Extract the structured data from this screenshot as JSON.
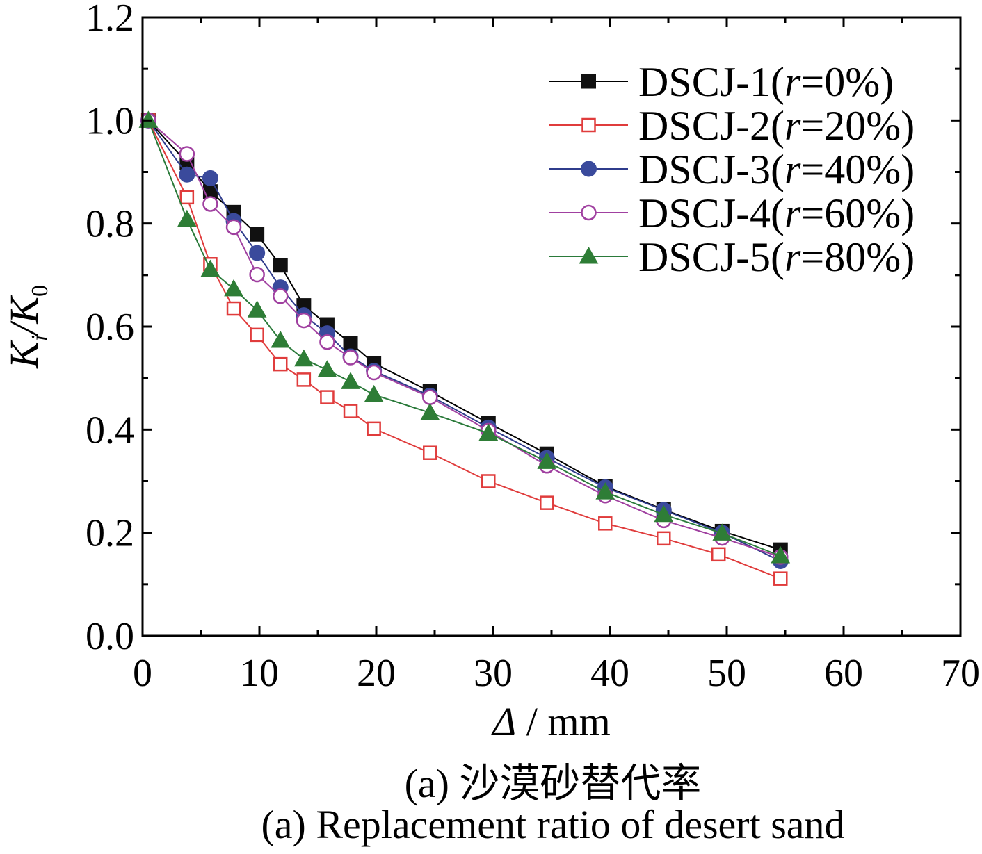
{
  "chart_data": {
    "type": "line",
    "ylabel": {
      "main": "K",
      "sub_num": "i",
      "sep": "/K",
      "sub_den": "0"
    },
    "xlabel": {
      "symbol": "Δ",
      "unit": " / mm"
    },
    "xlim": [
      0,
      70
    ],
    "ylim": [
      0.0,
      1.2
    ],
    "xticks": [
      "0",
      "10",
      "20",
      "30",
      "40",
      "50",
      "60",
      "70"
    ],
    "yticks": [
      "0.0",
      "0.2",
      "0.4",
      "0.6",
      "0.8",
      "1.0",
      "1.2"
    ],
    "legend_position": "top-right",
    "series": [
      {
        "name_prefix": "DSCJ-1(",
        "name_var": "r",
        "name_suffix": "=0%)",
        "marker": "square-filled",
        "color": "#000000",
        "marker_color": "#111111",
        "x": [
          0.5,
          3.8,
          5.8,
          7.8,
          9.8,
          11.8,
          13.8,
          15.8,
          17.8,
          19.8,
          24.6,
          29.6,
          34.6,
          39.6,
          44.6,
          49.6,
          54.6
        ],
        "y": [
          1.0,
          0.918,
          0.862,
          0.822,
          0.779,
          0.719,
          0.641,
          0.604,
          0.568,
          0.529,
          0.474,
          0.413,
          0.353,
          0.29,
          0.245,
          0.203,
          0.167
        ]
      },
      {
        "name_prefix": "DSCJ-2(",
        "name_var": "r",
        "name_suffix": "=20%)",
        "marker": "square-open",
        "color": "#e03c3c",
        "marker_color": "#e03c3c",
        "x": [
          0.5,
          3.8,
          5.8,
          7.8,
          9.8,
          11.8,
          13.8,
          15.8,
          17.8,
          19.8,
          24.6,
          29.6,
          34.6,
          39.6,
          44.6,
          49.3,
          54.6
        ],
        "y": [
          1.0,
          0.851,
          0.721,
          0.635,
          0.584,
          0.527,
          0.497,
          0.463,
          0.436,
          0.402,
          0.355,
          0.3,
          0.258,
          0.218,
          0.189,
          0.158,
          0.111
        ]
      },
      {
        "name_prefix": "DSCJ-3(",
        "name_var": "r",
        "name_suffix": "=40%)",
        "marker": "circle-filled",
        "color": "#2f3c8c",
        "marker_color": "#3a4a9c",
        "x": [
          0.5,
          3.8,
          5.8,
          7.8,
          9.8,
          11.8,
          13.8,
          15.8,
          17.8,
          19.8,
          24.6,
          29.6,
          34.6,
          39.6,
          44.6,
          49.6,
          54.6
        ],
        "y": [
          1.0,
          0.895,
          0.888,
          0.805,
          0.743,
          0.676,
          0.622,
          0.587,
          0.542,
          0.514,
          0.466,
          0.404,
          0.345,
          0.288,
          0.244,
          0.2,
          0.145
        ]
      },
      {
        "name_prefix": "DSCJ-4(",
        "name_var": "r",
        "name_suffix": "=60%)",
        "marker": "circle-open",
        "color": "#a040a0",
        "marker_color": "#a040a0",
        "x": [
          0.5,
          3.8,
          5.8,
          7.8,
          9.8,
          11.8,
          13.8,
          15.8,
          17.8,
          19.8,
          24.6,
          29.6,
          34.6,
          39.6,
          44.6,
          49.6,
          54.6
        ],
        "y": [
          1.0,
          0.935,
          0.838,
          0.793,
          0.701,
          0.659,
          0.612,
          0.57,
          0.54,
          0.511,
          0.463,
          0.398,
          0.33,
          0.272,
          0.224,
          0.19,
          0.153
        ]
      },
      {
        "name_prefix": "DSCJ-5(",
        "name_var": "r",
        "name_suffix": "=80%)",
        "marker": "triangle-filled",
        "color": "#2a7a3a",
        "marker_color": "#2e7d36",
        "x": [
          0.5,
          3.8,
          5.8,
          7.8,
          9.8,
          11.8,
          13.8,
          15.8,
          17.8,
          19.8,
          24.6,
          29.6,
          34.6,
          39.6,
          44.6,
          49.6,
          54.6
        ],
        "y": [
          1.0,
          0.808,
          0.711,
          0.673,
          0.632,
          0.573,
          0.537,
          0.516,
          0.493,
          0.468,
          0.433,
          0.393,
          0.338,
          0.279,
          0.235,
          0.199,
          0.155
        ]
      }
    ]
  },
  "caption": {
    "zh": "(a) 沙漠砂替代率",
    "en": "(a) Replacement ratio of desert sand"
  }
}
